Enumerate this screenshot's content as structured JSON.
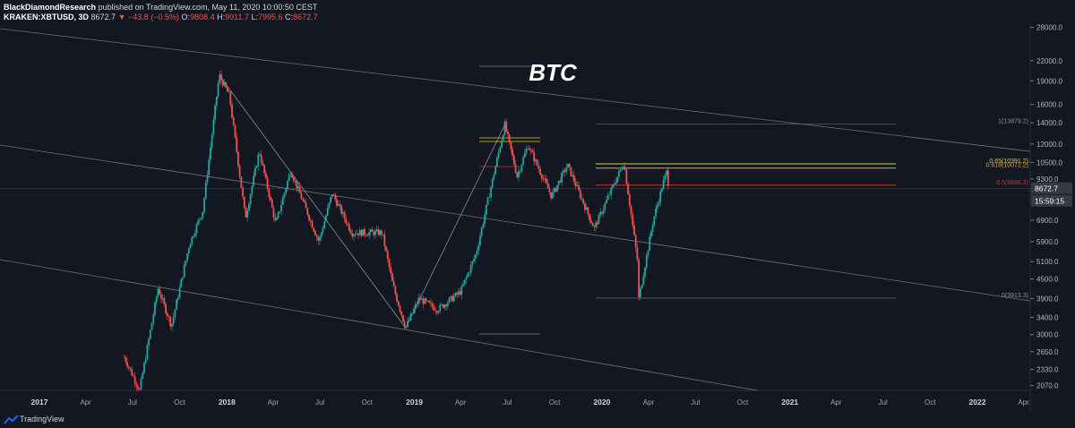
{
  "header": {
    "publisher": "BlackDiamondResearch",
    "published_text": "published on TradingView.com, May 11, 2020 10:00:50 CEST",
    "symbol": "KRAKEN:XBTUSD, 3D",
    "last": "8672.7",
    "change": "▼ −43.8 (−0.5%)",
    "o_label": "O:",
    "o_val": "9808.4",
    "h_label": "H:",
    "h_val": "9911.7",
    "l_label": "L:",
    "l_val": "7995.6",
    "c_label": "C:",
    "c_val": "8672.7"
  },
  "footer": {
    "brand": "TradingView"
  },
  "colors": {
    "background": "#131722",
    "up": "#26a69a",
    "down": "#ef5350",
    "fib_yellow": "#e0d21f",
    "fib_red": "#d32f2f"
  },
  "chart_data": {
    "type": "candlestick",
    "title": "BTC",
    "y_scale": "log",
    "ylim": [
      2000,
      28500
    ],
    "y_ticks": [
      "28000.0",
      "22000.0",
      "19000.0",
      "16000.0",
      "14000.0",
      "12000.0",
      "10500.0",
      "9300.0",
      "6900.0",
      "5900.0",
      "5100.0",
      "4500.0",
      "3900.0",
      "3400.0",
      "3000.0",
      "2650.0",
      "2330.0",
      "2070.0"
    ],
    "x_ticks": [
      "2017",
      "Apr",
      "Jul",
      "Oct",
      "2018",
      "Apr",
      "Jul",
      "Oct",
      "2019",
      "Apr",
      "Jul",
      "Oct",
      "2020",
      "Apr",
      "Jul",
      "Oct",
      "2021",
      "Apr",
      "Jul",
      "Oct",
      "2022",
      "Apr"
    ],
    "price_path": [
      [
        "2017-06-15",
        2550
      ],
      [
        "2017-07-15",
        2000
      ],
      [
        "2017-08-20",
        4200
      ],
      [
        "2017-09-15",
        3200
      ],
      [
        "2017-10-20",
        5800
      ],
      [
        "2017-11-15",
        7400
      ],
      [
        "2017-12-17",
        19800
      ],
      [
        "2018-01-06",
        17000
      ],
      [
        "2018-02-06",
        7000
      ],
      [
        "2018-03-05",
        11400
      ],
      [
        "2018-04-06",
        6700
      ],
      [
        "2018-05-05",
        9900
      ],
      [
        "2018-06-29",
        5900
      ],
      [
        "2018-07-25",
        8400
      ],
      [
        "2018-09-01",
        6300
      ],
      [
        "2018-10-30",
        6300
      ],
      [
        "2018-11-20",
        4300
      ],
      [
        "2018-12-15",
        3150
      ],
      [
        "2019-01-10",
        3900
      ],
      [
        "2019-02-15",
        3600
      ],
      [
        "2019-04-01",
        4100
      ],
      [
        "2019-05-01",
        5400
      ],
      [
        "2019-06-26",
        13800
      ],
      [
        "2019-07-20",
        9500
      ],
      [
        "2019-08-10",
        11900
      ],
      [
        "2019-09-25",
        8200
      ],
      [
        "2019-10-26",
        10300
      ],
      [
        "2019-12-17",
        6500
      ],
      [
        "2020-01-25",
        9000
      ],
      [
        "2020-02-13",
        10500
      ],
      [
        "2020-03-12",
        4900
      ],
      [
        "2020-03-13",
        3900
      ],
      [
        "2020-04-10",
        6900
      ],
      [
        "2020-04-29",
        9000
      ],
      [
        "2020-05-07",
        9900
      ],
      [
        "2020-05-10",
        8672.7
      ]
    ],
    "fib_levels": [
      {
        "label": "1(13879.2)",
        "price": 13879.2,
        "color": "#787b86"
      },
      {
        "label": "0.65(10391.2)",
        "price": 10391.2,
        "color": "#e0d21f"
      },
      {
        "label": "0.618(10072.2)",
        "price": 10072.2,
        "color": "#e8a33a"
      },
      {
        "label": "0.5(8896.3)",
        "price": 8896.3,
        "color": "#d32f2f"
      },
      {
        "label": "0(3913.3)",
        "price": 3913.3,
        "color": "#787b86"
      }
    ],
    "current_price_label": "8672.7",
    "countdown_label": "15:59:15"
  }
}
